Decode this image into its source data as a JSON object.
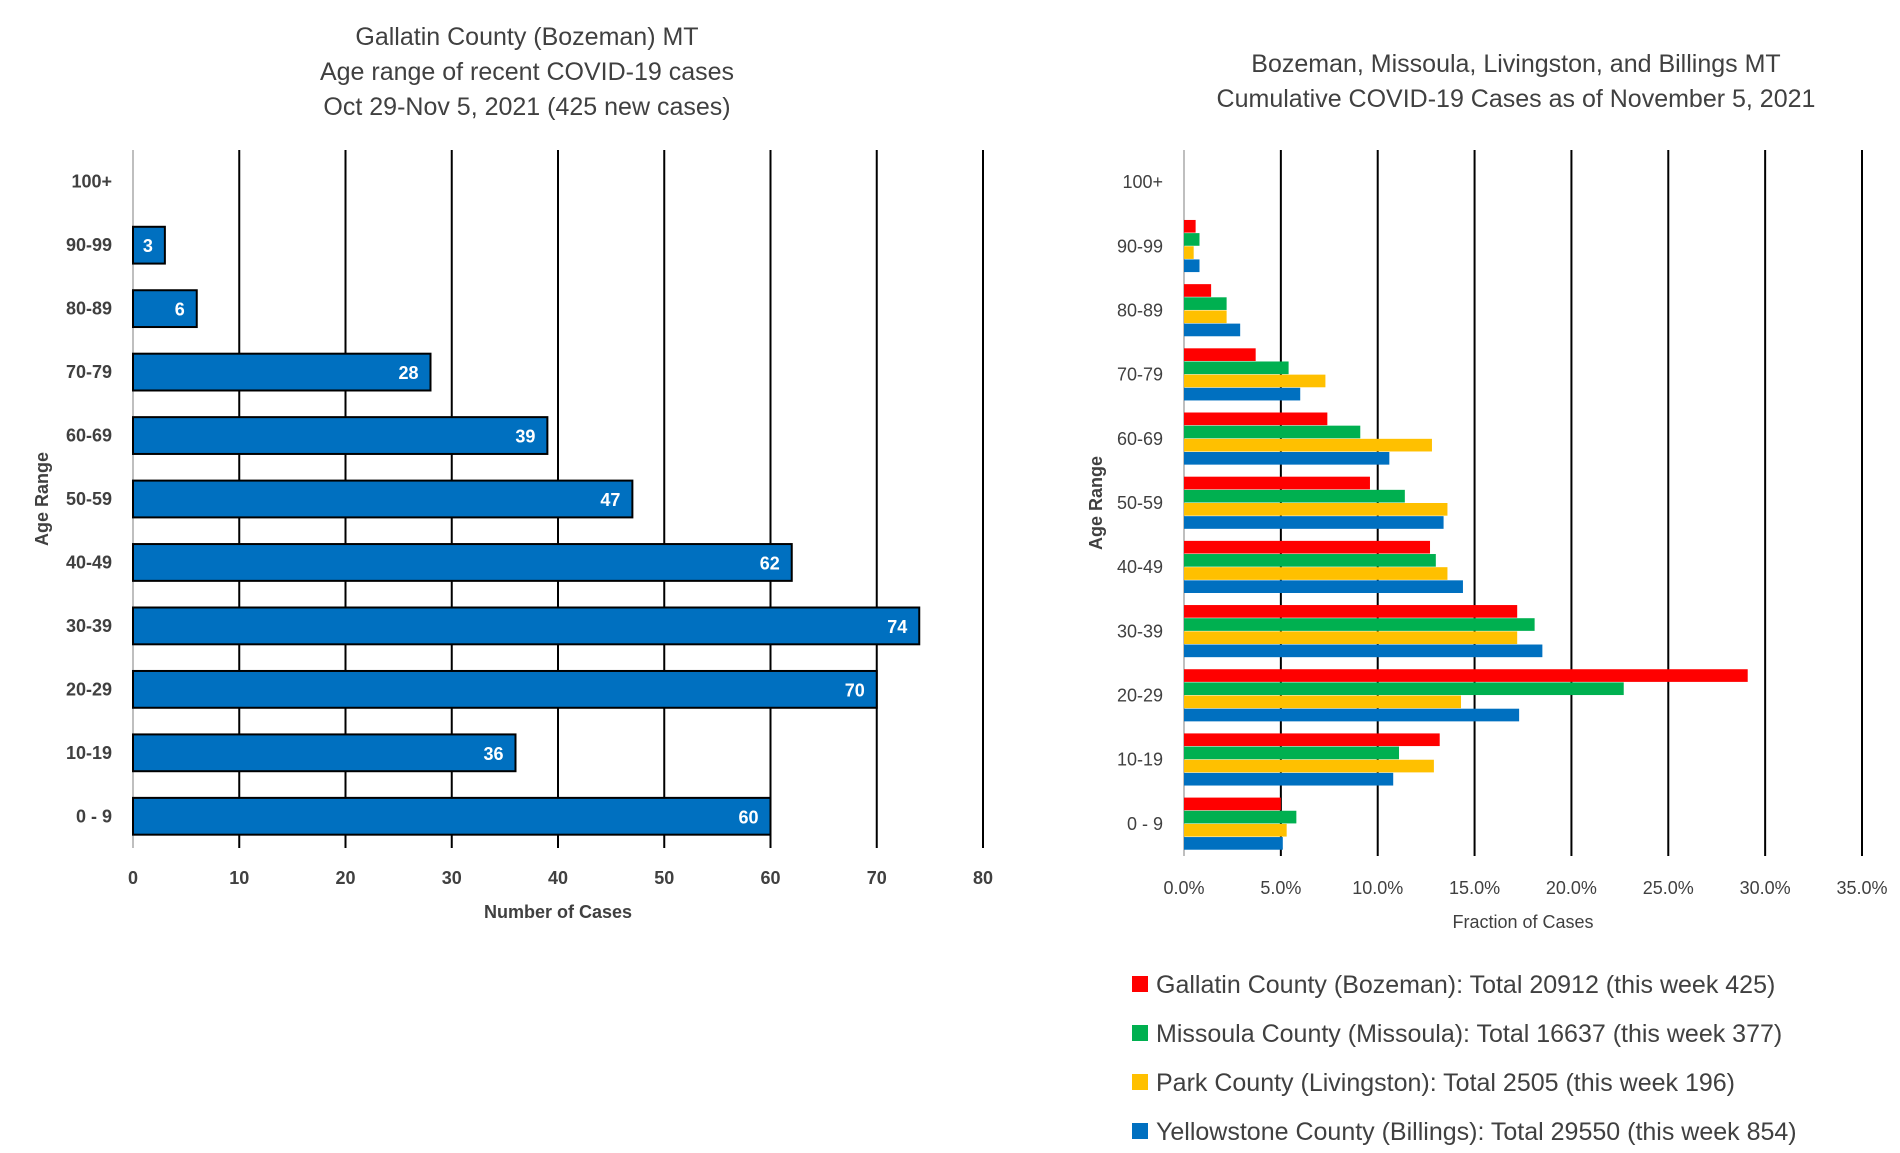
{
  "chart_data": [
    {
      "type": "bar",
      "orientation": "horizontal",
      "title": [
        "Gallatin County (Bozeman) MT",
        "Age range of recent COVID-19 cases",
        "Oct 29-Nov 5, 2021 (425 new cases)"
      ],
      "xlabel": "Number of Cases",
      "ylabel": "Age Range",
      "xlim": [
        0,
        80
      ],
      "xticks": [
        0,
        10,
        20,
        30,
        40,
        50,
        60,
        70,
        80
      ],
      "xtick_labels": [
        "0",
        "10",
        "20",
        "30",
        "40",
        "50",
        "60",
        "70",
        "80"
      ],
      "grid": "vertical",
      "categories": [
        "100+",
        "90-99",
        "80-89",
        "70-79",
        "60-69",
        "50-59",
        "40-49",
        "30-39",
        "20-29",
        "10-19",
        "0 - 9"
      ],
      "values": [
        0,
        3,
        6,
        28,
        39,
        47,
        62,
        74,
        70,
        36,
        60
      ],
      "value_labels": [
        "",
        "3",
        "6",
        "28",
        "39",
        "47",
        "62",
        "74",
        "70",
        "36",
        "60"
      ],
      "color": "#0070C0"
    },
    {
      "type": "bar",
      "orientation": "horizontal",
      "title": [
        "Bozeman, Missoula, Livingston, and Billings MT",
        "Cumulative COVID-19 Cases as of November 5, 2021"
      ],
      "xlabel": "Fraction of Cases",
      "ylabel": "Age Range",
      "xlim": [
        0,
        35
      ],
      "xticks": [
        0,
        5,
        10,
        15,
        20,
        25,
        30,
        35
      ],
      "xtick_labels": [
        "0.0%",
        "5.0%",
        "10.0%",
        "15.0%",
        "20.0%",
        "25.0%",
        "30.0%",
        "35.0%"
      ],
      "grid": "vertical",
      "legend": "bottom",
      "categories": [
        "100+",
        "90-99",
        "80-89",
        "70-79",
        "60-69",
        "50-59",
        "40-49",
        "30-39",
        "20-29",
        "10-19",
        "0 - 9"
      ],
      "series": [
        {
          "name": "Gallatin County (Bozeman): Total 20912 (this week 425)",
          "color": "#FF0000",
          "values": [
            0,
            0.6,
            1.4,
            3.7,
            7.4,
            9.6,
            12.7,
            17.2,
            29.1,
            13.2,
            5.0
          ]
        },
        {
          "name": "Missoula County (Missoula): Total 16637 (this week 377)",
          "color": "#00B050",
          "values": [
            0,
            0.8,
            2.2,
            5.4,
            9.1,
            11.4,
            13.0,
            18.1,
            22.7,
            11.1,
            5.8
          ]
        },
        {
          "name": "Park County (Livingston): Total 2505 (this week 196)",
          "color": "#FFC000",
          "values": [
            0,
            0.5,
            2.2,
            7.3,
            12.8,
            13.6,
            13.6,
            17.2,
            14.3,
            12.9,
            5.3
          ]
        },
        {
          "name": "Yellowstone County (Billings): Total 29550 (this week 854)",
          "color": "#0070C0",
          "values": [
            0,
            0.8,
            2.9,
            6.0,
            10.6,
            13.4,
            14.4,
            18.5,
            17.3,
            10.8,
            5.1
          ]
        }
      ]
    }
  ]
}
